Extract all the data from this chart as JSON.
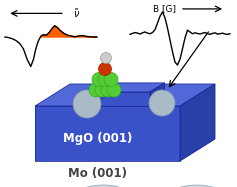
{
  "fig_width": 2.37,
  "fig_height": 1.87,
  "dpi": 100,
  "bg_color": "white",
  "ir_x": [
    -1.0,
    -0.92,
    -0.84,
    -0.76,
    -0.68,
    -0.6,
    -0.52,
    -0.44,
    -0.38,
    -0.33,
    -0.28,
    -0.22,
    -0.16,
    -0.1,
    -0.04,
    0.02,
    0.08,
    0.14,
    0.2,
    0.28,
    0.36,
    0.44,
    0.52,
    0.6,
    0.68,
    0.76,
    0.84,
    0.92,
    1.0
  ],
  "ir_y": [
    0.0,
    -0.02,
    -0.06,
    -0.12,
    -0.22,
    -0.4,
    -0.75,
    -1.0,
    -0.75,
    -0.4,
    -0.15,
    0.03,
    0.08,
    0.06,
    0.15,
    0.28,
    0.38,
    0.32,
    0.22,
    0.12,
    0.06,
    0.03,
    0.01,
    0.03,
    0.05,
    0.02,
    0.01,
    0.0,
    0.0
  ],
  "ir_fill_color": "#FF6000",
  "esr_x": [
    0.0,
    0.1,
    0.2,
    0.3,
    0.4,
    0.5,
    0.6,
    0.7,
    0.8,
    0.9,
    1.0,
    1.1,
    1.2,
    1.3,
    1.4,
    1.5,
    1.6,
    1.7,
    1.8,
    1.9,
    2.0,
    2.1,
    2.2,
    2.3,
    2.4,
    2.5,
    2.6,
    2.7,
    2.8,
    2.9,
    3.0,
    3.1,
    3.2,
    3.3,
    3.4,
    3.5,
    3.6,
    3.7,
    3.8,
    3.9,
    4.0
  ],
  "esr_y": [
    0.04,
    0.07,
    0.1,
    0.08,
    0.05,
    0.09,
    0.12,
    0.08,
    0.06,
    0.1,
    0.2,
    0.42,
    0.65,
    0.8,
    0.6,
    0.25,
    -0.15,
    -0.55,
    -0.9,
    -1.0,
    -0.8,
    -0.45,
    -0.08,
    0.18,
    0.12,
    0.06,
    0.09,
    0.07,
    0.05,
    0.08,
    0.1,
    0.06,
    0.04,
    0.07,
    0.09,
    0.05,
    0.06,
    0.08,
    0.05,
    0.04,
    0.06
  ],
  "mgo_color_front": "#3A52C8",
  "mgo_color_top": "#5068D8",
  "mgo_color_side": "#2840A8",
  "mo_color_front": "#B0BEC8",
  "mo_color_top": "#C8D4DC",
  "mo_color_side": "#9AAAB8",
  "mgo_label": "MgO (001)",
  "mo_label": "Mo (001)",
  "label_color_mgo": "white",
  "label_color_mo": "#444444",
  "label_fontsize": 8.5,
  "green_color": "#55CC33",
  "red_color": "#CC3300",
  "ball_color": "#AABBC8",
  "ball_edge": "#889AAA"
}
